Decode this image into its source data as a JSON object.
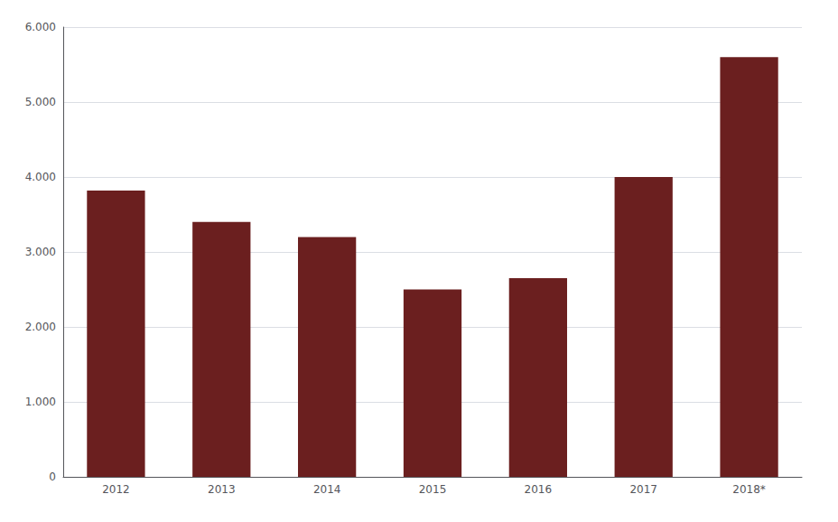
{
  "chart_data": {
    "type": "bar",
    "categories": [
      "2012",
      "2013",
      "2014",
      "2015",
      "2016",
      "2017",
      "2018*"
    ],
    "values": [
      3820,
      3400,
      3200,
      2500,
      2650,
      4000,
      5600
    ],
    "color": "#6b1f1f",
    "ylim": [
      0,
      6000
    ],
    "yticks": [
      0,
      {
        "value": 1000,
        "label": "1.000"
      },
      {
        "value": 2000,
        "label": "2.000"
      },
      {
        "value": 3000,
        "label": "3.000"
      },
      {
        "value": 4000,
        "label": "4.000"
      },
      {
        "value": 5000,
        "label": "5.000"
      },
      {
        "value": 6000,
        "label": "6.000"
      }
    ],
    "grid": true
  }
}
